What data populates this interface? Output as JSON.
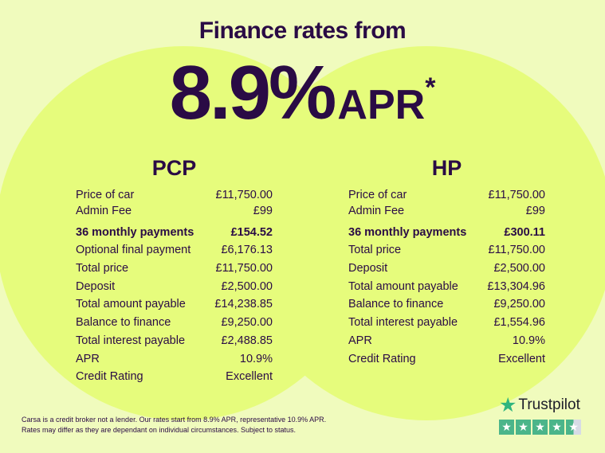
{
  "header": {
    "title": "Finance rates from",
    "rate": "8.9%",
    "apr": "APR",
    "asterisk": "*"
  },
  "pcp": {
    "title": "PCP",
    "rows": [
      {
        "label": "Price of car",
        "value": "£11,750.00"
      },
      {
        "label": "Admin Fee",
        "value": "£99"
      },
      {
        "label": "36 monthly payments",
        "value": "£154.52"
      },
      {
        "label": "Optional final payment",
        "value": "£6,176.13"
      },
      {
        "label": "Total price",
        "value": "£11,750.00"
      },
      {
        "label": "Deposit",
        "value": "£2,500.00"
      },
      {
        "label": "Total amount payable",
        "value": "£14,238.85"
      },
      {
        "label": "Balance to finance",
        "value": "£9,250.00"
      },
      {
        "label": "Total interest payable",
        "value": "£2,488.85"
      },
      {
        "label": "APR",
        "value": "10.9%"
      },
      {
        "label": "Credit Rating",
        "value": "Excellent"
      }
    ]
  },
  "hp": {
    "title": "HP",
    "rows": [
      {
        "label": "Price of car",
        "value": "£11,750.00"
      },
      {
        "label": "Admin Fee",
        "value": "£99"
      },
      {
        "label": "36 monthly payments",
        "value": "£300.11"
      },
      {
        "label": "Total price",
        "value": "£11,750.00"
      },
      {
        "label": "Deposit",
        "value": "£2,500.00"
      },
      {
        "label": "Total amount payable",
        "value": "£13,304.96"
      },
      {
        "label": "Balance to finance",
        "value": "£9,250.00"
      },
      {
        "label": "Total interest payable",
        "value": "£1,554.96"
      },
      {
        "label": "APR",
        "value": "10.9%"
      },
      {
        "label": "Credit Rating",
        "value": "Excellent"
      }
    ]
  },
  "footer": {
    "line1": "Carsa is a credit broker not a lender. Our rates start from 8.9% APR, representative 10.9% APR.",
    "line2": "Rates may differ as they are dependant on individual circumstances. Subject to status."
  },
  "trustpilot": {
    "name": "Trustpilot",
    "rating_stars": 4.5,
    "icon": "star-icon"
  },
  "colors": {
    "background": "#f0fbbd",
    "circle": "#e6fc7c",
    "text": "#2a0b45",
    "trustpilot": "#4bb58a"
  }
}
